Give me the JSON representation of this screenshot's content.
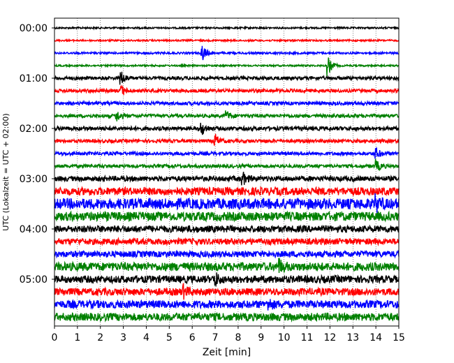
{
  "chart_data": {
    "type": "line",
    "title": "",
    "xlabel": "Zeit  [min]",
    "ylabel": "UTC (Lokalzeit = UTC + 02:00)",
    "xlim": [
      0,
      15
    ],
    "x_ticks": [
      "0",
      "1",
      "2",
      "3",
      "4",
      "5",
      "6",
      "7",
      "8",
      "9",
      "10",
      "11",
      "12",
      "13",
      "14",
      "15"
    ],
    "y_ticks": [
      "00:00",
      "01:00",
      "02:00",
      "03:00",
      "04:00",
      "05:00"
    ],
    "row_interval_min": 15,
    "row_start_times": [
      "00:00",
      "00:15",
      "00:30",
      "00:45",
      "01:00",
      "01:15",
      "01:30",
      "01:45",
      "02:00",
      "02:15",
      "02:30",
      "02:45",
      "03:00",
      "03:15",
      "03:30",
      "03:45",
      "04:00",
      "04:15",
      "04:30",
      "04:45",
      "05:00",
      "05:15",
      "05:30",
      "05:45"
    ],
    "colors": [
      "#000000",
      "#ff0000",
      "#0000ff",
      "#008000"
    ],
    "series": [
      {
        "row_start": "00:00",
        "color": "#000000",
        "amplitude": 0.15,
        "events": []
      },
      {
        "row_start": "00:15",
        "color": "#ff0000",
        "amplitude": 0.15,
        "events": []
      },
      {
        "row_start": "00:30",
        "color": "#0000ff",
        "amplitude": 0.18,
        "events": [
          {
            "t": 6.4,
            "amp": 1.8
          }
        ]
      },
      {
        "row_start": "00:45",
        "color": "#008000",
        "amplitude": 0.15,
        "events": [
          {
            "t": 11.9,
            "amp": 1.8
          }
        ]
      },
      {
        "row_start": "01:00",
        "color": "#000000",
        "amplitude": 0.3,
        "events": [
          {
            "t": 2.9,
            "amp": 1.2
          }
        ]
      },
      {
        "row_start": "01:15",
        "color": "#ff0000",
        "amplitude": 0.3,
        "events": [
          {
            "t": 2.9,
            "amp": 0.9
          }
        ]
      },
      {
        "row_start": "01:30",
        "color": "#0000ff",
        "amplitude": 0.3,
        "events": []
      },
      {
        "row_start": "01:45",
        "color": "#008000",
        "amplitude": 0.3,
        "events": [
          {
            "t": 2.7,
            "amp": 1.0
          },
          {
            "t": 7.5,
            "amp": 0.8
          }
        ]
      },
      {
        "row_start": "02:00",
        "color": "#000000",
        "amplitude": 0.35,
        "events": [
          {
            "t": 6.4,
            "amp": 1.2
          }
        ]
      },
      {
        "row_start": "02:15",
        "color": "#ff0000",
        "amplitude": 0.3,
        "events": [
          {
            "t": 7.0,
            "amp": 1.1
          }
        ]
      },
      {
        "row_start": "02:30",
        "color": "#0000ff",
        "amplitude": 0.3,
        "events": [
          {
            "t": 14.0,
            "amp": 1.0
          }
        ]
      },
      {
        "row_start": "02:45",
        "color": "#008000",
        "amplitude": 0.3,
        "events": [
          {
            "t": 14.0,
            "amp": 1.0
          }
        ]
      },
      {
        "row_start": "03:00",
        "color": "#000000",
        "amplitude": 0.45,
        "events": [
          {
            "t": 8.2,
            "amp": 1.0
          }
        ]
      },
      {
        "row_start": "03:15",
        "color": "#ff0000",
        "amplitude": 0.7,
        "events": []
      },
      {
        "row_start": "03:30",
        "color": "#0000ff",
        "amplitude": 0.95,
        "events": [
          {
            "t": 14.0,
            "amp": 1.0
          }
        ]
      },
      {
        "row_start": "03:45",
        "color": "#008000",
        "amplitude": 0.8,
        "events": []
      },
      {
        "row_start": "04:00",
        "color": "#000000",
        "amplitude": 0.6,
        "events": []
      },
      {
        "row_start": "04:15",
        "color": "#ff0000",
        "amplitude": 0.55,
        "events": []
      },
      {
        "row_start": "04:30",
        "color": "#0000ff",
        "amplitude": 0.55,
        "events": []
      },
      {
        "row_start": "04:45",
        "color": "#008000",
        "amplitude": 0.75,
        "events": [
          {
            "t": 9.8,
            "amp": 1.0
          }
        ]
      },
      {
        "row_start": "05:00",
        "color": "#000000",
        "amplitude": 0.65,
        "events": [
          {
            "t": 7.0,
            "amp": 1.0
          }
        ]
      },
      {
        "row_start": "05:15",
        "color": "#ff0000",
        "amplitude": 0.65,
        "events": [
          {
            "t": 5.6,
            "amp": 1.0
          }
        ]
      },
      {
        "row_start": "05:30",
        "color": "#0000ff",
        "amplitude": 0.7,
        "events": [
          {
            "t": 9.3,
            "amp": 0.9
          }
        ]
      },
      {
        "row_start": "05:45",
        "color": "#008000",
        "amplitude": 0.7,
        "events": []
      }
    ],
    "grid": "vertical dotted lines at each minute",
    "legend": "none"
  }
}
